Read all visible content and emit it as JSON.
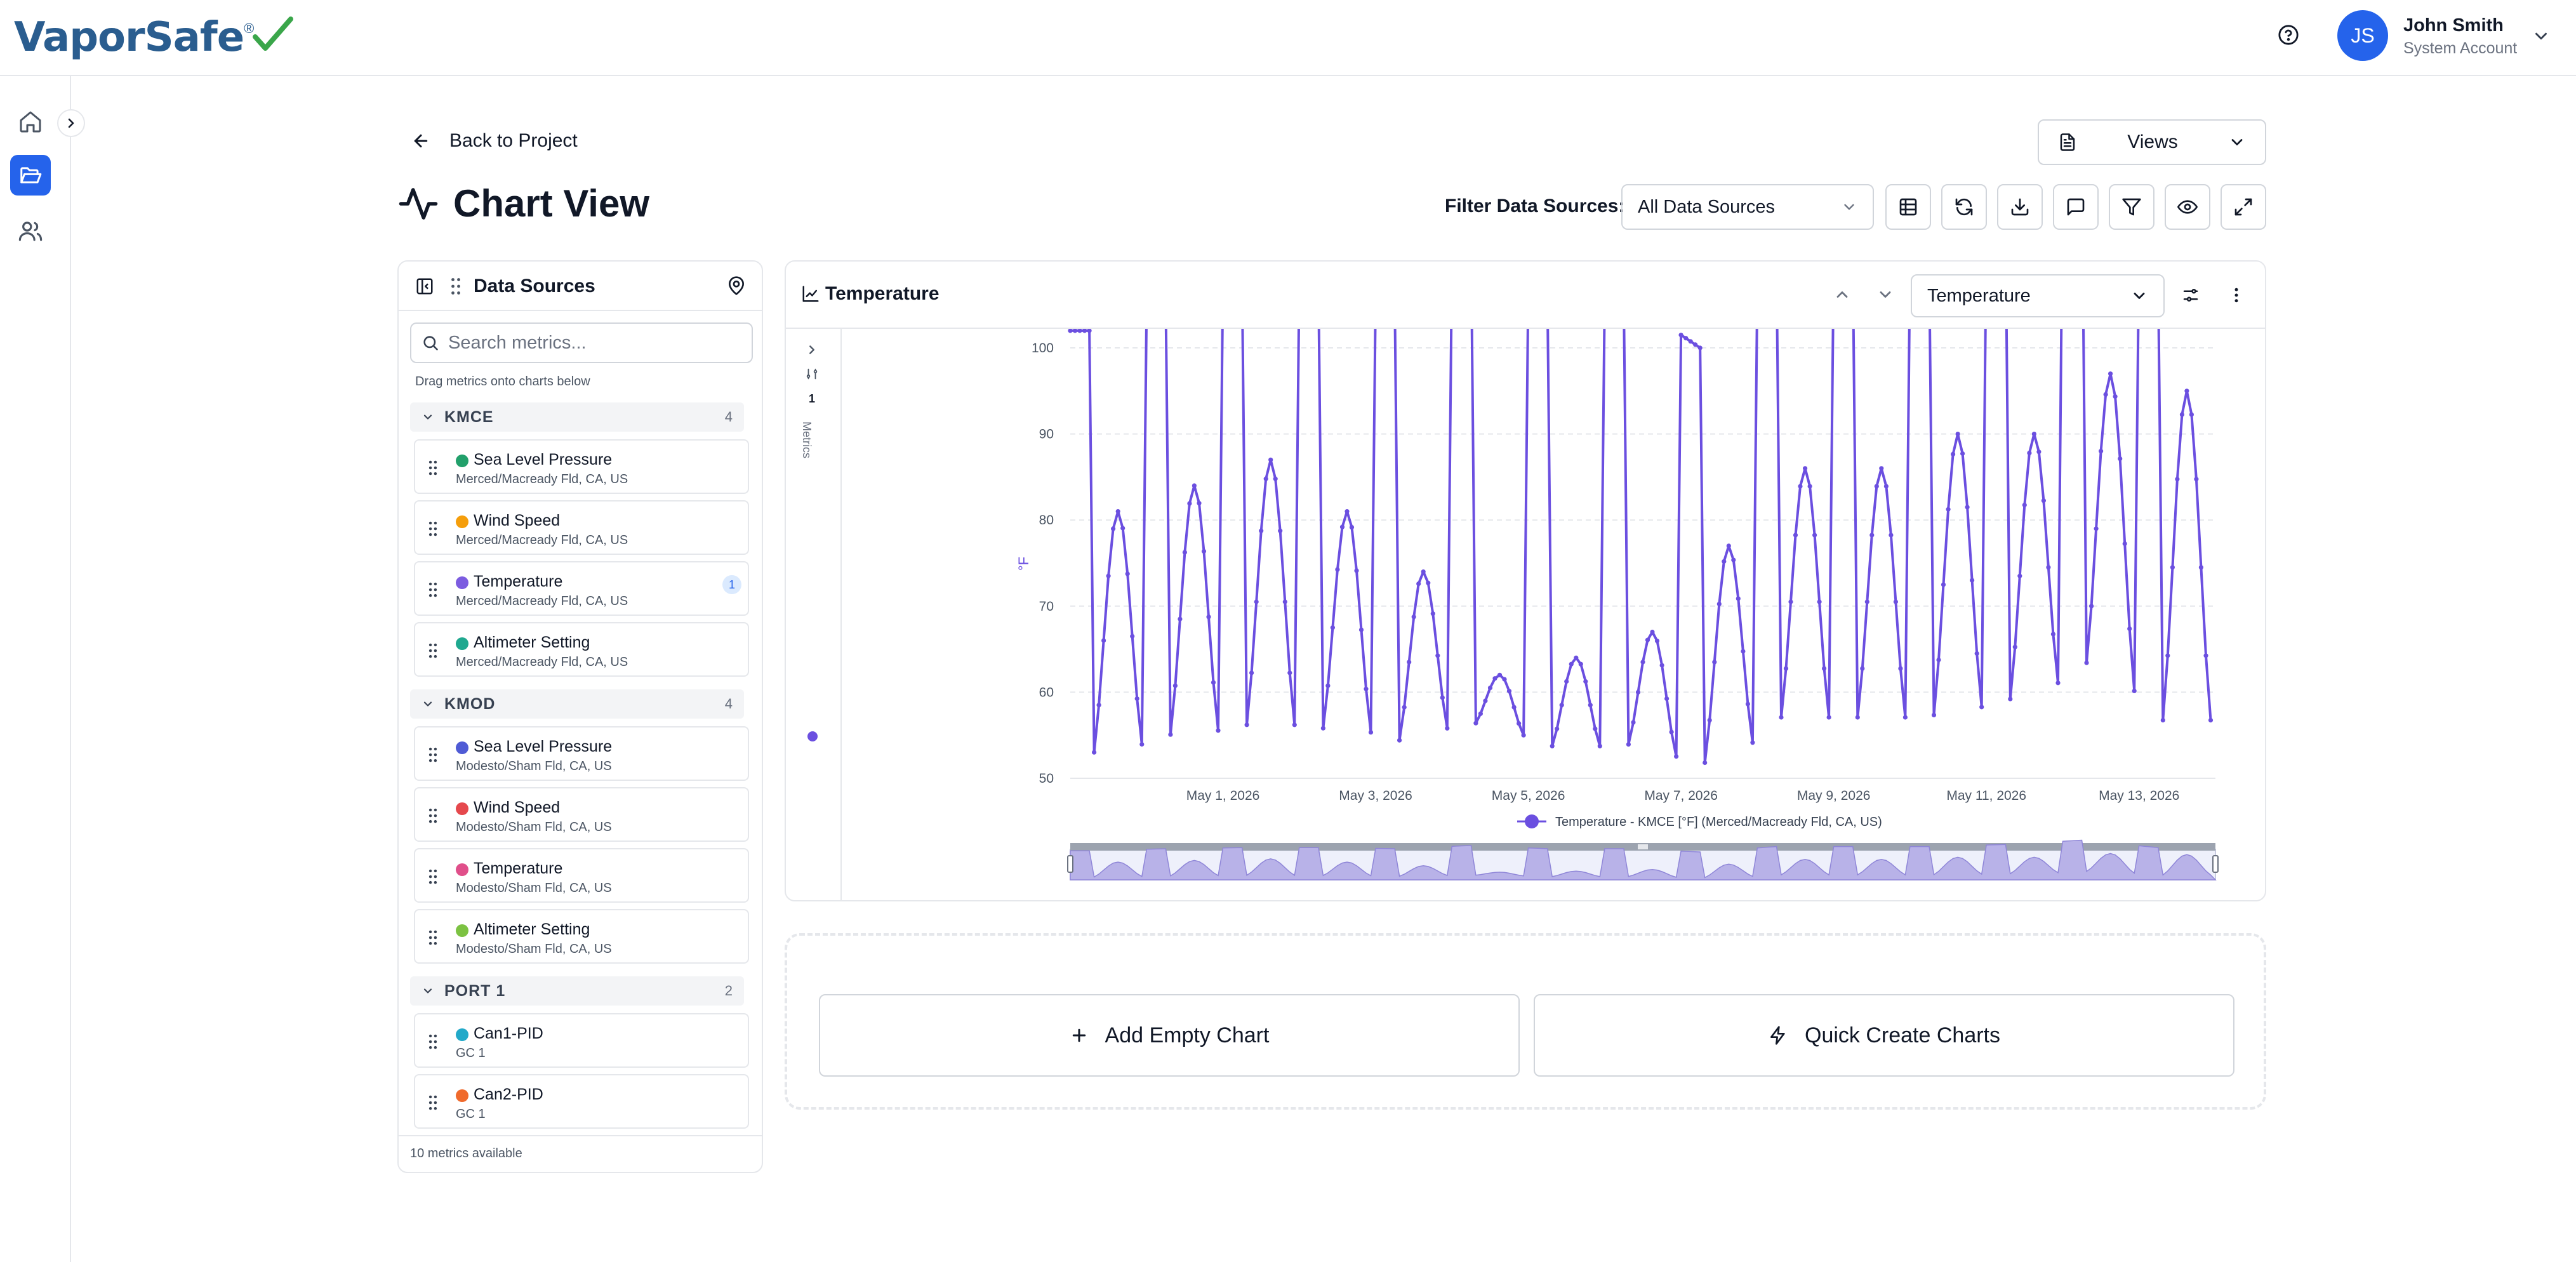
{
  "app": {
    "brand": "VaporSafe",
    "brand_mark": "®",
    "user_initials": "JS",
    "user_name": "John Smith",
    "user_role": "System Account",
    "accent_color": "#2563eb"
  },
  "icons": {
    "help": "help-circle-icon",
    "home": "home-icon",
    "projects": "folder-open-icon",
    "users": "users-icon",
    "expand": "chevron-right-icon"
  },
  "header": {
    "back_label": "Back to Project",
    "title": "Chart View",
    "views_label": "Views",
    "filter_label": "Filter Data Sources:",
    "filter_value": "All Data Sources",
    "toolbar_icons": [
      "table-icon",
      "refresh-icon",
      "download-icon",
      "comment-icon",
      "filter-icon",
      "eye-icon",
      "expand-icon"
    ]
  },
  "sources": {
    "title": "Data Sources",
    "search_placeholder": "Search metrics...",
    "hint": "Drag metrics onto charts below",
    "footer": "10 metrics available",
    "groups": [
      {
        "name": "KMCE",
        "count": "4",
        "items": [
          {
            "name": "Sea Level Pressure",
            "sub": "Merced/Macready Fld, CA, US",
            "color": "#22a06b"
          },
          {
            "name": "Wind Speed",
            "sub": "Merced/Macready Fld, CA, US",
            "color": "#f59e0b"
          },
          {
            "name": "Temperature",
            "sub": "Merced/Macready Fld, CA, US",
            "color": "#7c5ce0",
            "badge": "1"
          },
          {
            "name": "Altimeter Setting",
            "sub": "Merced/Macready Fld, CA, US",
            "color": "#1fa88f"
          }
        ]
      },
      {
        "name": "KMOD",
        "count": "4",
        "items": [
          {
            "name": "Sea Level Pressure",
            "sub": "Modesto/Sham Fld, CA, US",
            "color": "#4f5bd5"
          },
          {
            "name": "Wind Speed",
            "sub": "Modesto/Sham Fld, CA, US",
            "color": "#e5484d"
          },
          {
            "name": "Temperature",
            "sub": "Modesto/Sham Fld, CA, US",
            "color": "#e04f8a"
          },
          {
            "name": "Altimeter Setting",
            "sub": "Modesto/Sham Fld, CA, US",
            "color": "#7cc242"
          }
        ]
      },
      {
        "name": "PORT 1",
        "count": "2",
        "items": [
          {
            "name": "Can1-PID",
            "sub": "GC 1",
            "color": "#22a9c9"
          },
          {
            "name": "Can2-PID",
            "sub": "GC 1",
            "color": "#f06a2c"
          }
        ]
      }
    ]
  },
  "chart_panel": {
    "title": "Temperature",
    "select_value": "Temperature",
    "metrics_label": "Metrics",
    "metrics_count": "1"
  },
  "chart_data": {
    "type": "line",
    "ylabel": "°F",
    "xlabel": "",
    "ylim": [
      50,
      100
    ],
    "yticks": [
      50,
      60,
      70,
      80,
      90,
      100
    ],
    "xlim": [
      "2026-04-29",
      "2026-05-14"
    ],
    "xticks": [
      "May 1, 2026",
      "May 3, 2026",
      "May 5, 2026",
      "May 7, 2026",
      "May 9, 2026",
      "May 11, 2026",
      "May 13, 2026"
    ],
    "grid": true,
    "legend_position": "bottom",
    "series": [
      {
        "name": "Temperature - KMCE [°F] (Merced/Macready Fld, CA, US)",
        "color": "#6b4fe0",
        "daily_extremes": [
          {
            "date": "2026-04-29",
            "min": 51,
            "max": 81
          },
          {
            "date": "2026-04-30",
            "min": 53,
            "max": 84
          },
          {
            "date": "2026-05-01",
            "min": 54,
            "max": 87
          },
          {
            "date": "2026-05-02",
            "min": 54,
            "max": 81
          },
          {
            "date": "2026-05-03",
            "min": 53,
            "max": 74
          },
          {
            "date": "2026-05-04",
            "min": 56,
            "max": 62
          },
          {
            "date": "2026-05-05",
            "min": 53,
            "max": 64
          },
          {
            "date": "2026-05-06",
            "min": 53,
            "max": 67
          },
          {
            "date": "2026-05-07",
            "min": 50,
            "max": 77
          },
          {
            "date": "2026-05-08",
            "min": 55,
            "max": 86
          },
          {
            "date": "2026-05-09",
            "min": 55,
            "max": 86
          },
          {
            "date": "2026-05-10",
            "min": 55,
            "max": 90
          },
          {
            "date": "2026-05-11",
            "min": 57,
            "max": 90
          },
          {
            "date": "2026-05-12",
            "min": 61,
            "max": 97
          },
          {
            "date": "2026-05-13",
            "min": 54,
            "max": 95
          }
        ]
      }
    ]
  },
  "actions": {
    "add_empty": "Add Empty Chart",
    "quick_create": "Quick Create Charts"
  }
}
